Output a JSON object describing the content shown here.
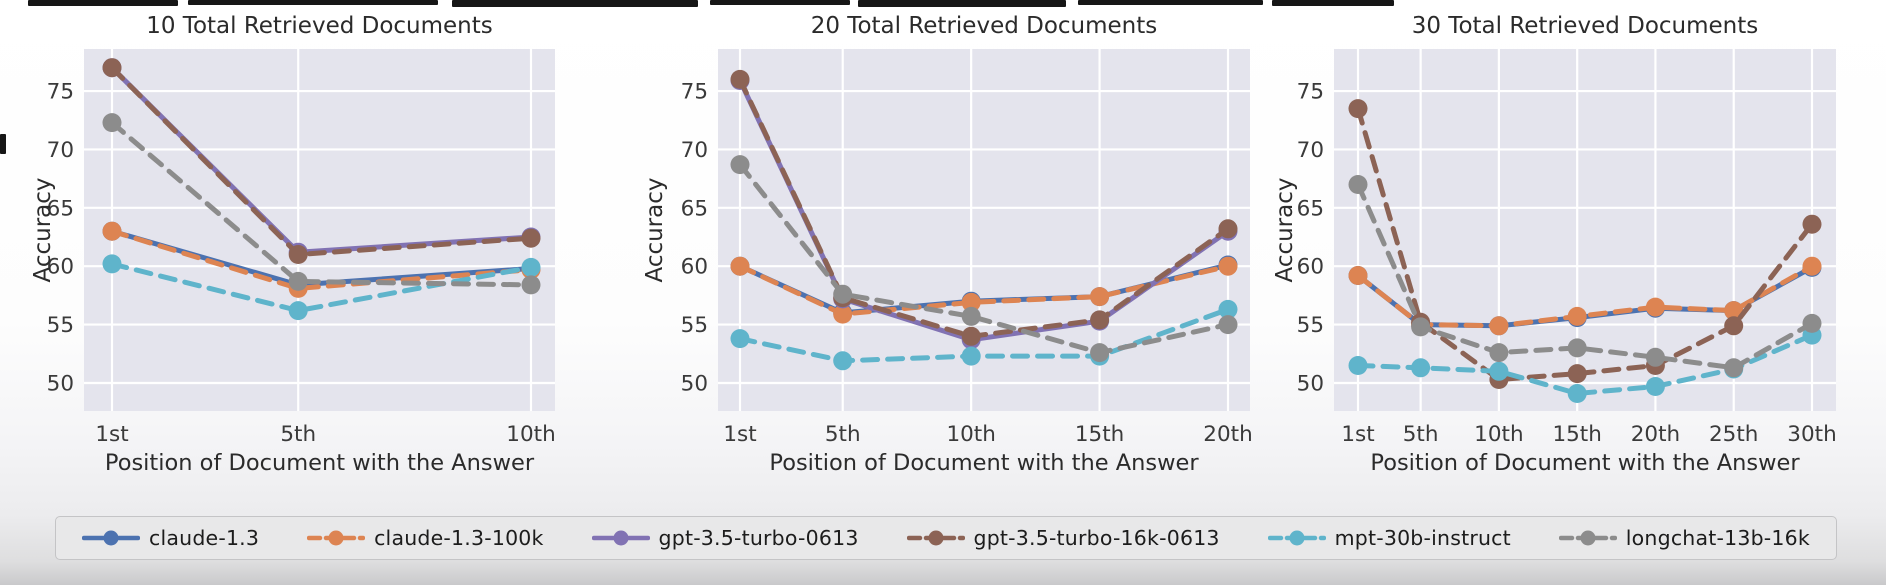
{
  "figure": {
    "xlabel": "Position of Document with the Answer",
    "ylabel": "Accuracy"
  },
  "colors": {
    "plot_background": "#e4e4ed",
    "grid": "#ffffff",
    "title_text": "#2b2b2b",
    "tick_text": "#3a3a3a",
    "legend_background": "#e8e8e9",
    "legend_border": "#c4c4c6"
  },
  "legend": {
    "items": [
      {
        "label": "claude-1.3",
        "color": "#4C72B0",
        "style": "solid"
      },
      {
        "label": "claude-1.3-100k",
        "color": "#DD8452",
        "style": "dashed"
      },
      {
        "label": "gpt-3.5-turbo-0613",
        "color": "#8172B3",
        "style": "solid"
      },
      {
        "label": "gpt-3.5-turbo-16k-0613",
        "color": "#8C6355",
        "style": "dashed"
      },
      {
        "label": "mpt-30b-instruct",
        "color": "#5FB4CB",
        "style": "dashed"
      },
      {
        "label": "longchat-13b-16k",
        "color": "#8C8C8C",
        "style": "dashed"
      }
    ]
  },
  "chart_data": [
    {
      "type": "line",
      "title": "10 Total Retrieved Documents",
      "xlabel": "Position of Document with the Answer",
      "ylabel": "Accuracy",
      "x_positions": [
        1,
        5,
        10
      ],
      "x_tick_labels": [
        "1st",
        "5th",
        "10th"
      ],
      "yticks": [
        50,
        55,
        60,
        65,
        70,
        75
      ],
      "ylim": [
        47.6,
        78.6
      ],
      "grid": true,
      "legend_position": "shared-bottom",
      "series": [
        {
          "name": "claude-1.3",
          "color": "#4C72B0",
          "style": "solid",
          "values": [
            63.0,
            58.4,
            59.8
          ]
        },
        {
          "name": "claude-1.3-100k",
          "color": "#DD8452",
          "style": "dashed",
          "values": [
            63.0,
            58.1,
            59.7
          ]
        },
        {
          "name": "gpt-3.5-turbo-0613",
          "color": "#8172B3",
          "style": "solid",
          "values": [
            77.0,
            61.2,
            62.5
          ]
        },
        {
          "name": "gpt-3.5-turbo-16k-0613",
          "color": "#8C6355",
          "style": "dashed",
          "values": [
            77.0,
            61.0,
            62.4
          ]
        },
        {
          "name": "mpt-30b-instruct",
          "color": "#5FB4CB",
          "style": "dashed",
          "values": [
            60.2,
            56.2,
            59.9
          ]
        },
        {
          "name": "longchat-13b-16k",
          "color": "#8C8C8C",
          "style": "dashed",
          "values": [
            72.3,
            58.7,
            58.4
          ]
        }
      ]
    },
    {
      "type": "line",
      "title": "20 Total Retrieved Documents",
      "xlabel": "Position of Document with the Answer",
      "ylabel": "Accuracy",
      "x_positions": [
        1,
        5,
        10,
        15,
        20
      ],
      "x_tick_labels": [
        "1st",
        "5th",
        "10th",
        "15th",
        "20th"
      ],
      "yticks": [
        50,
        55,
        60,
        65,
        70,
        75
      ],
      "ylim": [
        47.6,
        78.6
      ],
      "grid": true,
      "legend_position": "shared-bottom",
      "series": [
        {
          "name": "claude-1.3",
          "color": "#4C72B0",
          "style": "solid",
          "values": [
            60.0,
            56.0,
            57.0,
            57.4,
            60.1
          ]
        },
        {
          "name": "claude-1.3-100k",
          "color": "#DD8452",
          "style": "dashed",
          "values": [
            60.0,
            55.9,
            56.9,
            57.4,
            60.0
          ]
        },
        {
          "name": "gpt-3.5-turbo-0613",
          "color": "#8172B3",
          "style": "solid",
          "values": [
            75.9,
            57.2,
            53.7,
            55.3,
            63.0
          ]
        },
        {
          "name": "gpt-3.5-turbo-16k-0613",
          "color": "#8C6355",
          "style": "dashed",
          "values": [
            76.0,
            57.3,
            54.0,
            55.4,
            63.2
          ]
        },
        {
          "name": "mpt-30b-instruct",
          "color": "#5FB4CB",
          "style": "dashed",
          "values": [
            53.8,
            51.9,
            52.3,
            52.3,
            56.3
          ]
        },
        {
          "name": "longchat-13b-16k",
          "color": "#8C8C8C",
          "style": "dashed",
          "values": [
            68.7,
            57.6,
            55.7,
            52.6,
            55.0
          ]
        }
      ]
    },
    {
      "type": "line",
      "title": "30 Total Retrieved Documents",
      "xlabel": "Position of Document with the Answer",
      "ylabel": "Accuracy",
      "x_positions": [
        1,
        5,
        10,
        15,
        20,
        25,
        30
      ],
      "x_tick_labels": [
        "1st",
        "5th",
        "10th",
        "15th",
        "20th",
        "25th",
        "30th"
      ],
      "yticks": [
        50,
        55,
        60,
        65,
        70,
        75
      ],
      "ylim": [
        47.6,
        78.6
      ],
      "grid": true,
      "legend_position": "shared-bottom",
      "series": [
        {
          "name": "claude-1.3",
          "color": "#4C72B0",
          "style": "solid",
          "values": [
            59.2,
            55.0,
            54.9,
            55.6,
            56.4,
            56.2,
            59.9
          ]
        },
        {
          "name": "claude-1.3-100k",
          "color": "#DD8452",
          "style": "dashed",
          "values": [
            59.2,
            55.0,
            54.9,
            55.7,
            56.5,
            56.2,
            60.0
          ]
        },
        {
          "name": "gpt-3.5-turbo-16k-0613",
          "color": "#8C6355",
          "style": "dashed",
          "values": [
            73.5,
            55.2,
            50.3,
            50.8,
            51.5,
            54.9,
            63.6
          ]
        },
        {
          "name": "mpt-30b-instruct",
          "color": "#5FB4CB",
          "style": "dashed",
          "values": [
            51.5,
            51.3,
            51.0,
            49.1,
            49.7,
            51.2,
            54.1
          ]
        },
        {
          "name": "longchat-13b-16k",
          "color": "#8C8C8C",
          "style": "dashed",
          "values": [
            67.0,
            54.8,
            52.6,
            53.0,
            52.2,
            51.3,
            55.1
          ]
        }
      ]
    }
  ]
}
